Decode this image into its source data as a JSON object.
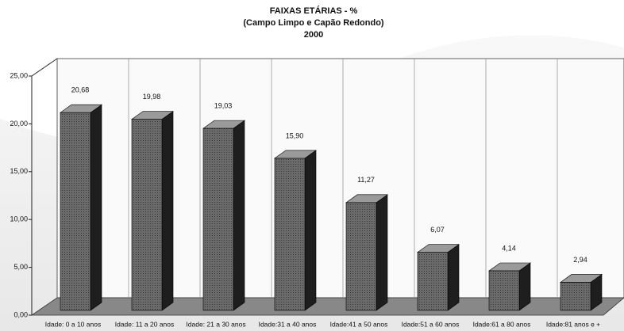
{
  "chart_data": {
    "type": "bar3d",
    "title": "FAIXAS ETÁRIAS - %",
    "subtitle": "(Campo Limpo e Capão Redondo)",
    "year": "2000",
    "categories": [
      "Idade: 0 a 10 anos",
      "Idade: 11 a 20 anos",
      "Idade: 21 a 30 anos",
      "Idade:31 a 40 anos",
      "Idade:41 a 50 anos",
      "Idade:51 a 60 anos",
      "Idade:61 a 80 anos",
      "Idade:81 anos e +"
    ],
    "values": [
      20.68,
      19.98,
      19.03,
      15.9,
      11.27,
      6.07,
      4.14,
      2.94
    ],
    "value_labels": [
      "20,68",
      "19,98",
      "19,03",
      "15,90",
      "11,27",
      "6,07",
      "4,14",
      "2,94"
    ],
    "color": "#5a5a5a",
    "ylim": [
      0,
      25
    ],
    "yticks": [
      {
        "value": 0,
        "label": "0,00"
      },
      {
        "value": 5,
        "label": "5,00"
      },
      {
        "value": 10,
        "label": "10,00"
      },
      {
        "value": 15,
        "label": "15,00"
      },
      {
        "value": 20,
        "label": "20,00"
      },
      {
        "value": 25,
        "label": "25,00"
      }
    ]
  }
}
